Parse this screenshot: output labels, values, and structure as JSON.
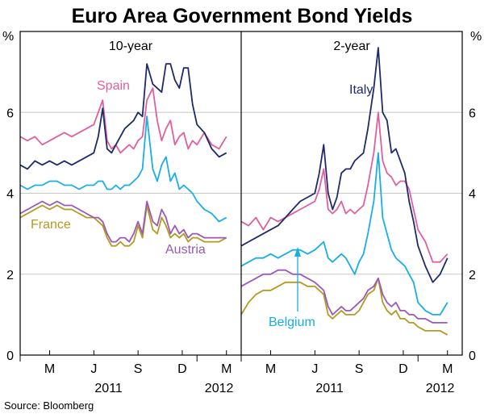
{
  "chart_data": {
    "type": "line",
    "title": "Euro Area Government Bond Yields",
    "unit": "%",
    "ylim": [
      0,
      8
    ],
    "yticks": [
      0,
      2,
      4,
      6
    ],
    "source": "Source: Bloomberg",
    "month_ticks": [
      "M",
      "J",
      "S",
      "D",
      "M"
    ],
    "year_labels": [
      "2011",
      "2012"
    ],
    "x_range": [
      0,
      15
    ],
    "x_note": "x in months since Jan 2011",
    "panels": [
      {
        "title": "10-year",
        "series": [
          {
            "name": "Italy",
            "color": "#1f2a6b",
            "label": "",
            "x": [
              0,
              0.5,
              1,
              1.5,
              2,
              2.5,
              3,
              3.5,
              4,
              4.5,
              5,
              5.3,
              5.6,
              5.9,
              6.2,
              6.5,
              6.8,
              7.1,
              7.4,
              7.7,
              8,
              8.3,
              8.6,
              9,
              9.3,
              9.6,
              9.9,
              10.2,
              10.5,
              10.8,
              11.1,
              11.4,
              11.7,
              12,
              12.5,
              13,
              13.5,
              14
            ],
            "values": [
              4.7,
              4.6,
              4.8,
              4.7,
              4.8,
              4.7,
              4.8,
              4.7,
              4.8,
              4.9,
              5.0,
              5.4,
              6.1,
              5.1,
              5.0,
              5.2,
              5.4,
              5.6,
              5.7,
              5.8,
              6.0,
              5.9,
              7.2,
              6.7,
              6.6,
              6.5,
              7.2,
              7.2,
              6.8,
              6.6,
              7.1,
              7.1,
              6.2,
              5.7,
              5.5,
              5.1,
              4.9,
              5.0
            ]
          },
          {
            "name": "Spain",
            "color": "#e0609d",
            "label": "Spain",
            "x": [
              0,
              0.5,
              1,
              1.5,
              2,
              2.5,
              3,
              3.5,
              4,
              4.5,
              5,
              5.3,
              5.6,
              5.9,
              6.2,
              6.5,
              6.8,
              7.1,
              7.4,
              7.7,
              8,
              8.3,
              8.6,
              9,
              9.3,
              9.6,
              9.9,
              10.2,
              10.5,
              10.8,
              11.1,
              11.4,
              11.7,
              12,
              12.5,
              13,
              13.5,
              14
            ],
            "values": [
              5.4,
              5.3,
              5.4,
              5.2,
              5.3,
              5.4,
              5.5,
              5.4,
              5.5,
              5.6,
              5.7,
              6.0,
              6.3,
              5.3,
              5.1,
              5.2,
              5.0,
              5.1,
              5.2,
              5.1,
              5.3,
              5.4,
              6.3,
              6.6,
              5.8,
              5.3,
              5.6,
              5.8,
              5.2,
              5.4,
              5.5,
              5.1,
              5.3,
              5.2,
              5.5,
              5.2,
              5.1,
              5.4
            ]
          },
          {
            "name": "Belgium",
            "color": "#19aee4",
            "label": "",
            "x": [
              0,
              0.5,
              1,
              1.5,
              2,
              2.5,
              3,
              3.5,
              4,
              4.5,
              5,
              5.3,
              5.6,
              5.9,
              6.2,
              6.5,
              6.8,
              7.1,
              7.4,
              7.7,
              8,
              8.3,
              8.6,
              9,
              9.3,
              9.6,
              9.9,
              10.2,
              10.5,
              10.8,
              11.1,
              11.4,
              11.7,
              12,
              12.5,
              13,
              13.5,
              14
            ],
            "values": [
              4.2,
              4.1,
              4.2,
              4.2,
              4.3,
              4.3,
              4.2,
              4.2,
              4.1,
              4.2,
              4.2,
              4.3,
              4.3,
              4.1,
              4.1,
              4.2,
              4.1,
              4.2,
              4.2,
              4.3,
              4.4,
              4.6,
              5.9,
              4.6,
              4.3,
              4.7,
              4.9,
              4.3,
              4.5,
              4.1,
              4.2,
              4.1,
              4.0,
              3.8,
              3.6,
              3.5,
              3.3,
              3.4
            ]
          },
          {
            "name": "Austria",
            "color": "#9b59b6",
            "label": "Austria",
            "x": [
              0,
              0.5,
              1,
              1.5,
              2,
              2.5,
              3,
              3.5,
              4,
              4.5,
              5,
              5.3,
              5.6,
              5.9,
              6.2,
              6.5,
              6.8,
              7.1,
              7.4,
              7.7,
              8,
              8.3,
              8.6,
              9,
              9.3,
              9.6,
              9.9,
              10.2,
              10.5,
              10.8,
              11.1,
              11.4,
              11.7,
              12,
              12.5,
              13,
              13.5,
              14
            ],
            "values": [
              3.5,
              3.6,
              3.7,
              3.8,
              3.7,
              3.8,
              3.7,
              3.7,
              3.6,
              3.5,
              3.4,
              3.4,
              3.3,
              3.0,
              2.8,
              2.8,
              2.9,
              2.9,
              2.8,
              3.0,
              3.3,
              3.0,
              3.8,
              3.3,
              3.2,
              3.6,
              3.4,
              3.0,
              3.2,
              3.0,
              3.1,
              2.9,
              3.0,
              3.0,
              2.9,
              2.9,
              2.9,
              2.9
            ]
          },
          {
            "name": "France",
            "color": "#b59a1f",
            "label": "France",
            "x": [
              0,
              0.5,
              1,
              1.5,
              2,
              2.5,
              3,
              3.5,
              4,
              4.5,
              5,
              5.3,
              5.6,
              5.9,
              6.2,
              6.5,
              6.8,
              7.1,
              7.4,
              7.7,
              8,
              8.3,
              8.6,
              9,
              9.3,
              9.6,
              9.9,
              10.2,
              10.5,
              10.8,
              11.1,
              11.4,
              11.7,
              12,
              12.5,
              13,
              13.5,
              14
            ],
            "values": [
              3.4,
              3.5,
              3.6,
              3.7,
              3.6,
              3.7,
              3.6,
              3.6,
              3.5,
              3.4,
              3.4,
              3.3,
              3.2,
              2.9,
              2.7,
              2.7,
              2.8,
              2.7,
              2.7,
              2.8,
              3.2,
              2.9,
              3.7,
              3.1,
              3.0,
              3.4,
              3.2,
              2.9,
              3.0,
              2.9,
              3.0,
              2.8,
              2.9,
              2.9,
              2.8,
              2.8,
              2.8,
              2.9
            ]
          }
        ]
      },
      {
        "title": "2-year",
        "series": [
          {
            "name": "Italy",
            "color": "#1f2a6b",
            "label": "Italy",
            "x": [
              0,
              0.5,
              1,
              1.5,
              2,
              2.5,
              3,
              3.5,
              4,
              4.5,
              5,
              5.3,
              5.6,
              5.9,
              6.2,
              6.5,
              6.8,
              7.1,
              7.4,
              7.7,
              8,
              8.3,
              8.6,
              9,
              9.3,
              9.6,
              9.9,
              10.2,
              10.5,
              10.8,
              11.1,
              11.4,
              11.7,
              12,
              12.5,
              13,
              13.5,
              14
            ],
            "values": [
              2.7,
              2.8,
              2.9,
              3.0,
              3.1,
              3.2,
              3.4,
              3.6,
              3.8,
              3.9,
              4.0,
              4.5,
              5.2,
              4.0,
              3.6,
              3.9,
              4.5,
              4.6,
              4.6,
              4.8,
              4.9,
              5.0,
              5.6,
              6.6,
              7.6,
              6.0,
              5.8,
              5.0,
              5.1,
              4.8,
              4.5,
              3.8,
              3.3,
              2.7,
              2.2,
              1.8,
              2.0,
              2.4
            ]
          },
          {
            "name": "Spain",
            "color": "#e0609d",
            "label": "",
            "x": [
              0,
              0.5,
              1,
              1.5,
              2,
              2.5,
              3,
              3.5,
              4,
              4.5,
              5,
              5.3,
              5.6,
              5.9,
              6.2,
              6.5,
              6.8,
              7.1,
              7.4,
              7.7,
              8,
              8.3,
              8.6,
              9,
              9.3,
              9.6,
              9.9,
              10.2,
              10.5,
              10.8,
              11.1,
              11.4,
              11.7,
              12,
              12.5,
              13,
              13.5,
              14
            ],
            "values": [
              3.3,
              3.2,
              3.4,
              3.1,
              3.4,
              3.3,
              3.4,
              3.5,
              3.6,
              3.7,
              3.8,
              4.1,
              4.6,
              3.6,
              3.5,
              3.6,
              3.8,
              3.5,
              3.6,
              3.5,
              3.6,
              3.7,
              4.2,
              5.0,
              6.0,
              4.8,
              4.5,
              4.4,
              4.2,
              4.3,
              4.3,
              4.1,
              3.6,
              3.1,
              2.8,
              2.3,
              2.3,
              2.5
            ]
          },
          {
            "name": "Belgium",
            "color": "#19aee4",
            "label": "Belgium",
            "x": [
              0,
              0.5,
              1,
              1.5,
              2,
              2.5,
              3,
              3.5,
              4,
              4.5,
              5,
              5.3,
              5.6,
              5.9,
              6.2,
              6.5,
              6.8,
              7.1,
              7.4,
              7.7,
              8,
              8.3,
              8.6,
              9,
              9.3,
              9.6,
              9.9,
              10.2,
              10.5,
              10.8,
              11.1,
              11.4,
              11.7,
              12,
              12.5,
              13,
              13.5,
              14
            ],
            "values": [
              2.2,
              2.3,
              2.4,
              2.4,
              2.5,
              2.4,
              2.5,
              2.6,
              2.6,
              2.5,
              2.6,
              2.7,
              2.8,
              2.4,
              2.3,
              2.4,
              2.5,
              2.4,
              2.2,
              2.0,
              2.3,
              2.5,
              3.0,
              3.8,
              5.0,
              3.4,
              3.0,
              2.6,
              2.4,
              2.3,
              2.2,
              2.0,
              1.8,
              1.3,
              1.1,
              1.0,
              1.0,
              1.3
            ]
          },
          {
            "name": "Austria",
            "color": "#9b59b6",
            "label": "",
            "x": [
              0,
              0.5,
              1,
              1.5,
              2,
              2.5,
              3,
              3.5,
              4,
              4.5,
              5,
              5.3,
              5.6,
              5.9,
              6.2,
              6.5,
              6.8,
              7.1,
              7.4,
              7.7,
              8,
              8.3,
              8.6,
              9,
              9.3,
              9.6,
              9.9,
              10.2,
              10.5,
              10.8,
              11.1,
              11.4,
              11.7,
              12,
              12.5,
              13,
              13.5,
              14
            ],
            "values": [
              1.7,
              1.8,
              1.9,
              2.0,
              2.0,
              2.1,
              2.1,
              2.0,
              2.0,
              1.9,
              1.8,
              1.7,
              1.6,
              1.2,
              1.0,
              1.1,
              1.2,
              1.1,
              1.1,
              1.2,
              1.3,
              1.4,
              1.6,
              1.7,
              1.9,
              1.5,
              1.3,
              1.2,
              1.3,
              1.1,
              1.1,
              1.0,
              1.0,
              0.9,
              0.9,
              0.8,
              0.8,
              0.8
            ]
          },
          {
            "name": "France",
            "color": "#b59a1f",
            "label": "",
            "x": [
              0,
              0.5,
              1,
              1.5,
              2,
              2.5,
              3,
              3.5,
              4,
              4.5,
              5,
              5.3,
              5.6,
              5.9,
              6.2,
              6.5,
              6.8,
              7.1,
              7.4,
              7.7,
              8,
              8.3,
              8.6,
              9,
              9.3,
              9.6,
              9.9,
              10.2,
              10.5,
              10.8,
              11.1,
              11.4,
              11.7,
              12,
              12.5,
              13,
              13.5,
              14
            ],
            "values": [
              1.0,
              1.3,
              1.5,
              1.6,
              1.6,
              1.7,
              1.8,
              1.8,
              1.8,
              1.7,
              1.7,
              1.6,
              1.5,
              1.0,
              0.9,
              1.0,
              1.1,
              1.0,
              1.0,
              1.0,
              1.1,
              1.3,
              1.5,
              1.6,
              1.9,
              1.3,
              1.1,
              1.0,
              1.1,
              0.9,
              0.9,
              0.8,
              0.8,
              0.7,
              0.6,
              0.6,
              0.6,
              0.5
            ]
          }
        ]
      }
    ]
  }
}
